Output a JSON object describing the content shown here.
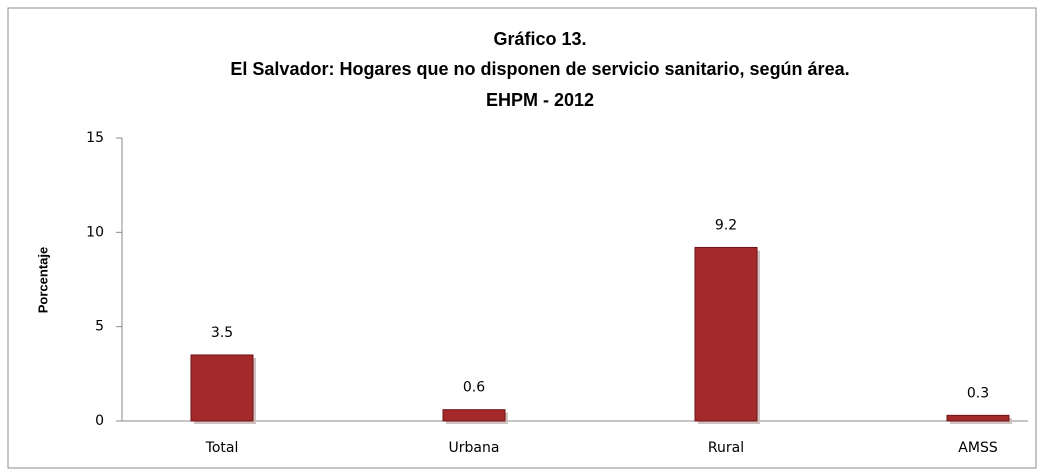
{
  "chart_data": {
    "type": "bar",
    "title": [
      "Gráfico 13.",
      "El Salvador: Hogares que no disponen de servicio sanitario, según área.",
      "EHPM - 2012"
    ],
    "y_label": "Porcentaje",
    "categories": [
      "Total",
      "Urbana",
      "Rural",
      "AMSS"
    ],
    "values": [
      3.5,
      0.6,
      9.2,
      0.3
    ],
    "color": "#a3292b",
    "ylim": [
      0,
      15
    ],
    "yticks": [
      0,
      5,
      10,
      15
    ],
    "grid": false
  }
}
